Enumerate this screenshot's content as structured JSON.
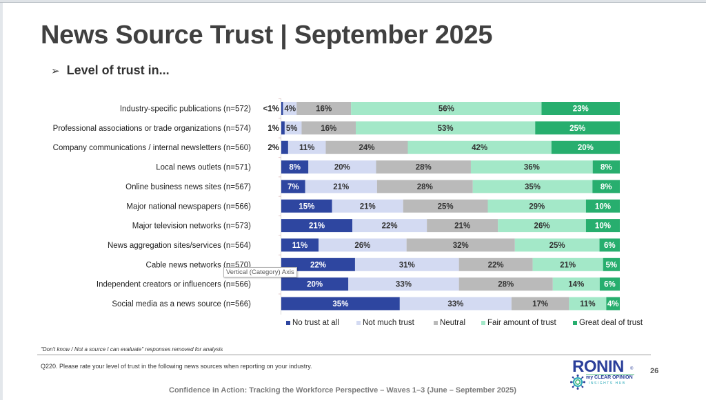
{
  "slide": {
    "title": "News Source Trust | September 2025",
    "subtitle_bullet": "➢",
    "subtitle": "Level of trust in...",
    "note": "\"Don't know / Not a source I can evaluate\" responses removed for analysis",
    "question": "Q220. Please rate your level of trust in the following news sources when reporting on your industry.",
    "footer": "Confidence in Action: Tracking the Workforce Perspective – Waves 1–3 (June – September 2025)",
    "page_number": "26",
    "logo": {
      "word": "RONIN",
      "registered": "®",
      "line1": "my CLEAR OPINION",
      "line2": "INSIGHTS HUB"
    },
    "tooltip": "Vertical (Category) Axis"
  },
  "chart_data": {
    "type": "bar",
    "orientation": "horizontal",
    "stacked": true,
    "title": "Level of trust in...",
    "xlabel": "",
    "ylabel": "",
    "xlim": [
      0,
      100
    ],
    "grid": false,
    "legend_position": "bottom",
    "categories": [
      "Industry-specific publications (n=572)",
      "Professional associations or trade organizations (n=574)",
      "Company communications / internal newsletters (n=560)",
      "Local news outlets (n=571)",
      "Online business news sites (n=567)",
      "Major national newspapers (n=566)",
      "Major television networks (n=573)",
      "News aggregation sites/services (n=564)",
      "Cable news networks (n=570)",
      "Independent creators or influencers (n=566)",
      "Social media as a news source (n=566)"
    ],
    "series": [
      {
        "name": "No trust at all",
        "color": "#2e46a0",
        "label_color": "#ffffff",
        "values": [
          0.5,
          1,
          2,
          8,
          7,
          15,
          21,
          11,
          22,
          20,
          35
        ],
        "labels": [
          "<1%",
          "1%",
          "2%",
          "8%",
          "7%",
          "15%",
          "21%",
          "11%",
          "22%",
          "20%",
          "35%"
        ]
      },
      {
        "name": "Not much trust",
        "color": "#d3daf2",
        "label_color": "#333333",
        "values": [
          4,
          5,
          11,
          20,
          21,
          21,
          22,
          26,
          31,
          33,
          33
        ],
        "labels": [
          "4%",
          "5%",
          "11%",
          "20%",
          "21%",
          "21%",
          "22%",
          "26%",
          "31%",
          "33%",
          "33%"
        ]
      },
      {
        "name": "Neutral",
        "color": "#bababa",
        "label_color": "#333333",
        "values": [
          16,
          16,
          24,
          28,
          28,
          25,
          21,
          32,
          22,
          28,
          17
        ],
        "labels": [
          "16%",
          "16%",
          "24%",
          "28%",
          "28%",
          "25%",
          "21%",
          "32%",
          "22%",
          "28%",
          "17%"
        ]
      },
      {
        "name": "Fair amount of trust",
        "color": "#a3e8c8",
        "label_color": "#333333",
        "values": [
          56,
          53,
          42,
          36,
          35,
          29,
          26,
          25,
          21,
          14,
          11
        ],
        "labels": [
          "56%",
          "53%",
          "42%",
          "36%",
          "35%",
          "29%",
          "26%",
          "25%",
          "21%",
          "14%",
          "11%"
        ]
      },
      {
        "name": "Great deal of trust",
        "color": "#27ae6e",
        "label_color": "#ffffff",
        "values": [
          23,
          25,
          20,
          8,
          8,
          10,
          10,
          6,
          5,
          6,
          4
        ],
        "labels": [
          "23%",
          "25%",
          "20%",
          "8%",
          "8%",
          "10%",
          "10%",
          "6%",
          "5%",
          "6%",
          "4%"
        ]
      }
    ],
    "outside_labels_for_first_series_rows": [
      0,
      1,
      2
    ]
  }
}
